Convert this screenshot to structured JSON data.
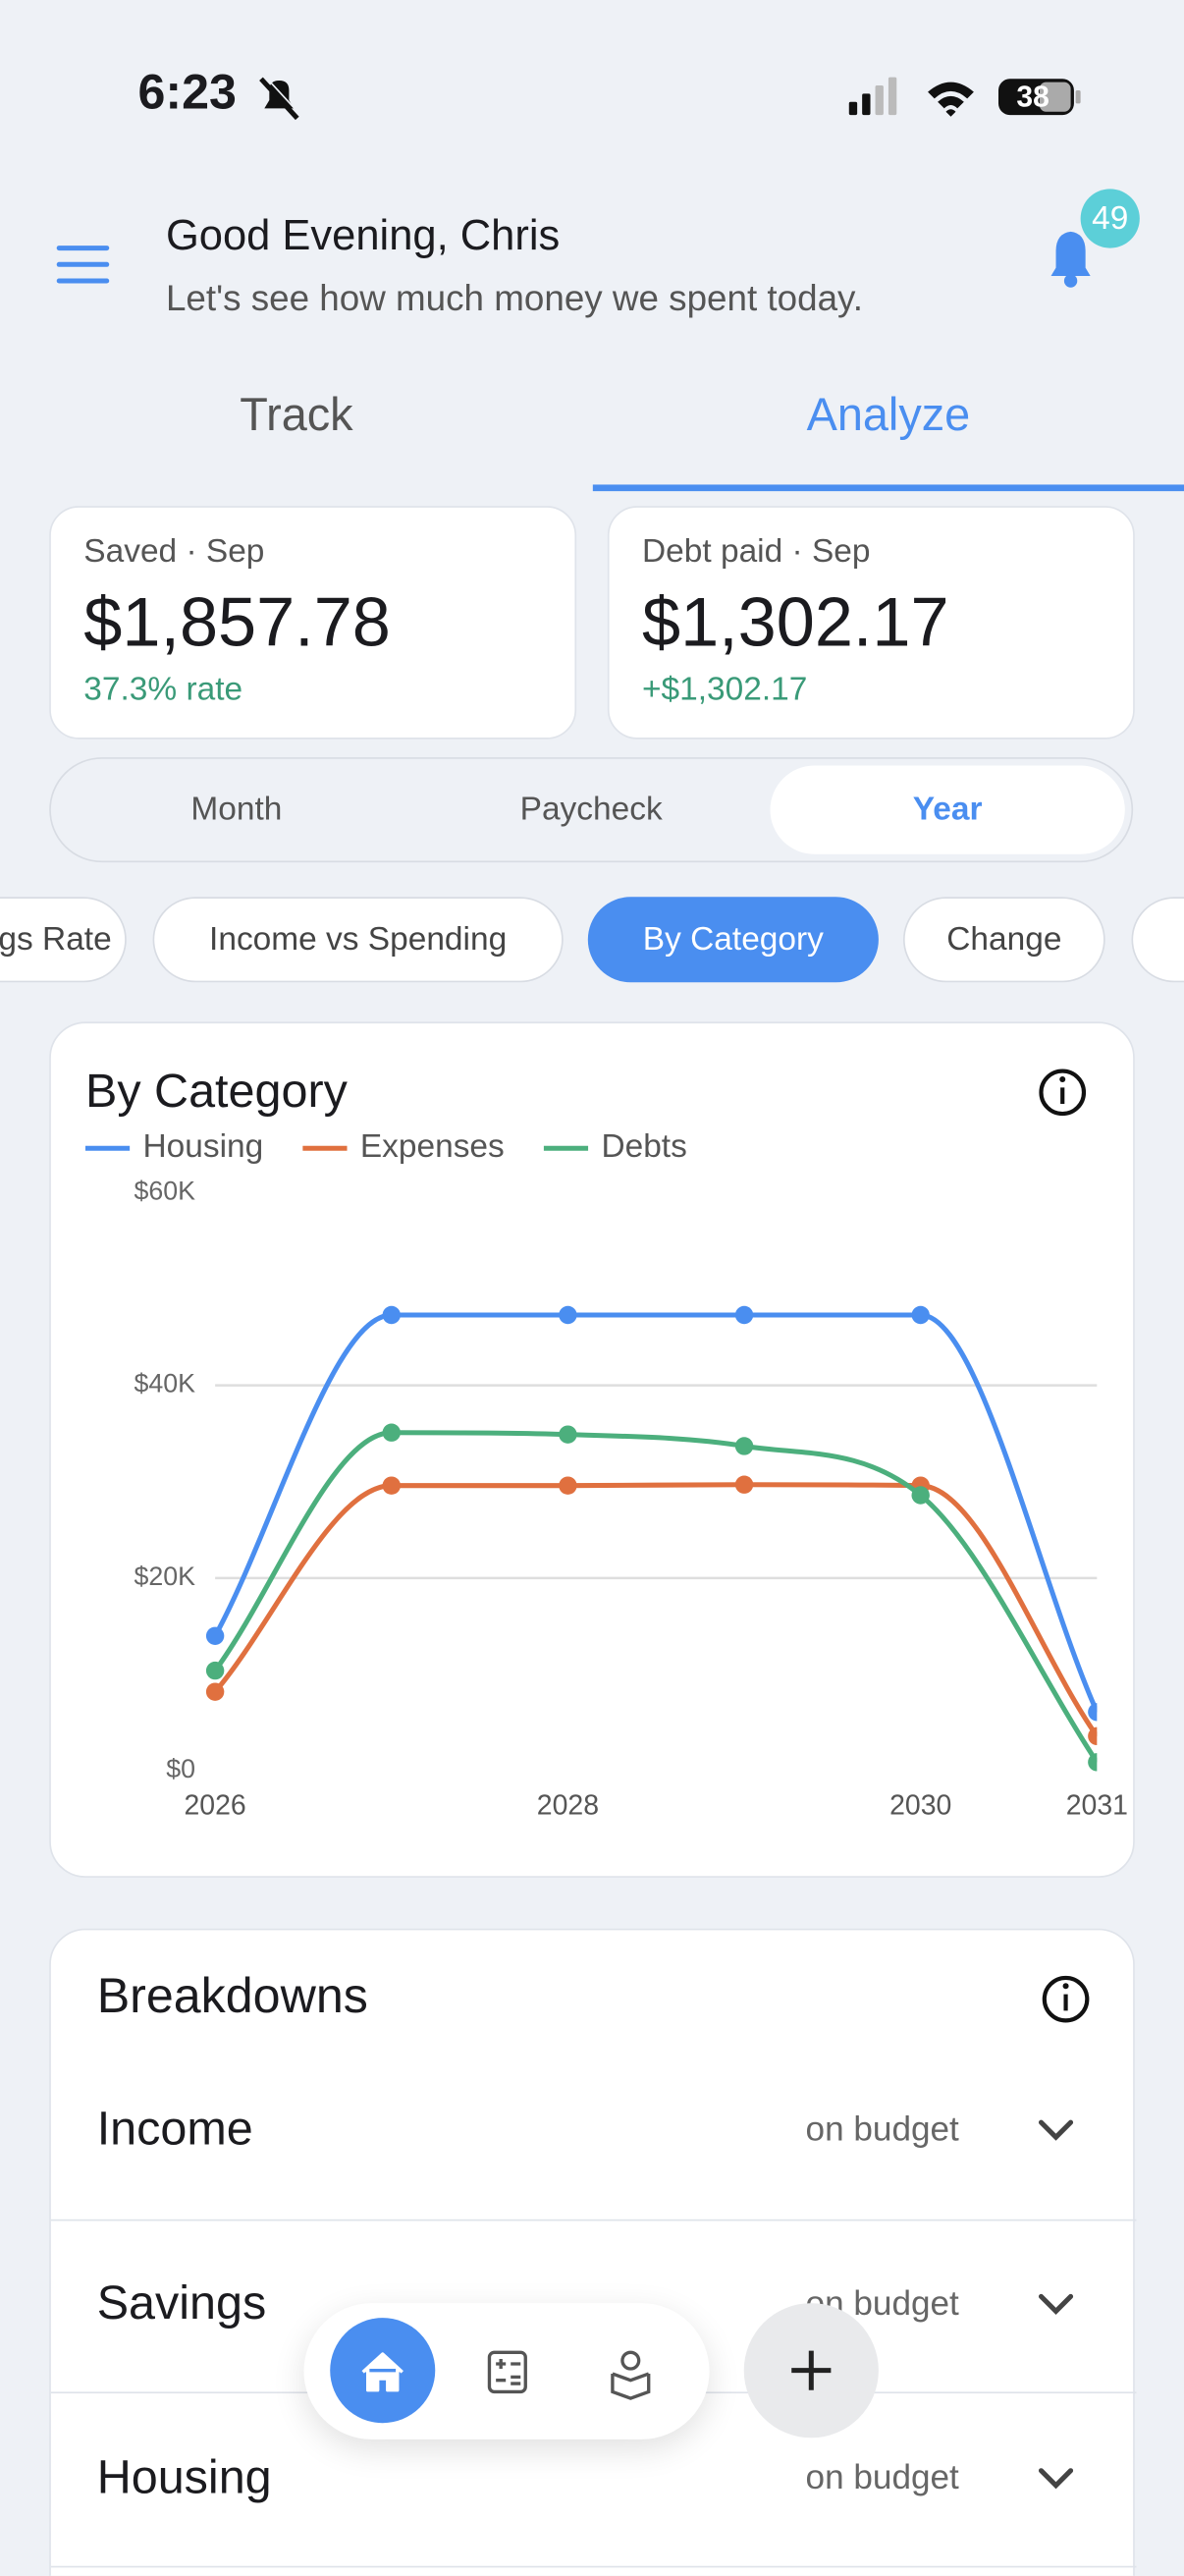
{
  "status_bar": {
    "time": "6:23",
    "battery": "38"
  },
  "header": {
    "greeting": "Good Evening, Chris",
    "subtitle": "Let's see how much money we spent today.",
    "notifications": 49
  },
  "tabs": [
    "Track",
    "Analyze"
  ],
  "summary_cards": [
    {
      "label": "Saved · Sep",
      "amount": "$1,857.78",
      "note": "37.3% rate"
    },
    {
      "label": "Debt paid · Sep",
      "amount": "$1,302.17",
      "note": "+$1,302.17"
    }
  ],
  "periods": [
    "Month",
    "Paycheck",
    "Year"
  ],
  "views": [
    "Savings Rate",
    "Income vs Spending",
    "By Category",
    "Change"
  ],
  "chart_data": {
    "type": "line",
    "title": "By Category",
    "x": [
      2026,
      2027,
      2028,
      2029,
      2030,
      2031
    ],
    "xlim": [
      2026,
      2031
    ],
    "xticks": [
      2026,
      2028,
      2030,
      2031
    ],
    "ylim": [
      0,
      60000
    ],
    "yticks": [
      {
        "value": 0,
        "label": "$0"
      },
      {
        "value": 20000,
        "label": "$20K"
      },
      {
        "value": 40000,
        "label": "$40K"
      },
      {
        "value": 60000,
        "label": "$60K"
      }
    ],
    "grid": true,
    "legend": "top-left",
    "series": [
      {
        "name": "Housing",
        "color": "#4a8ef0",
        "values": [
          14000,
          47300,
          47300,
          47300,
          47300,
          6100
        ]
      },
      {
        "name": "Expenses",
        "color": "#e0703f",
        "values": [
          8200,
          29600,
          29600,
          29700,
          29600,
          3600
        ]
      },
      {
        "name": "Debts",
        "color": "#4caf7d",
        "values": [
          10400,
          35100,
          34900,
          33700,
          28600,
          900
        ]
      }
    ]
  },
  "breakdowns": {
    "title": "Breakdowns",
    "rows": [
      {
        "label": "Income",
        "status": "on budget"
      },
      {
        "label": "Savings",
        "status": "on budget"
      },
      {
        "label": "Housing",
        "status": "on budget"
      }
    ]
  }
}
